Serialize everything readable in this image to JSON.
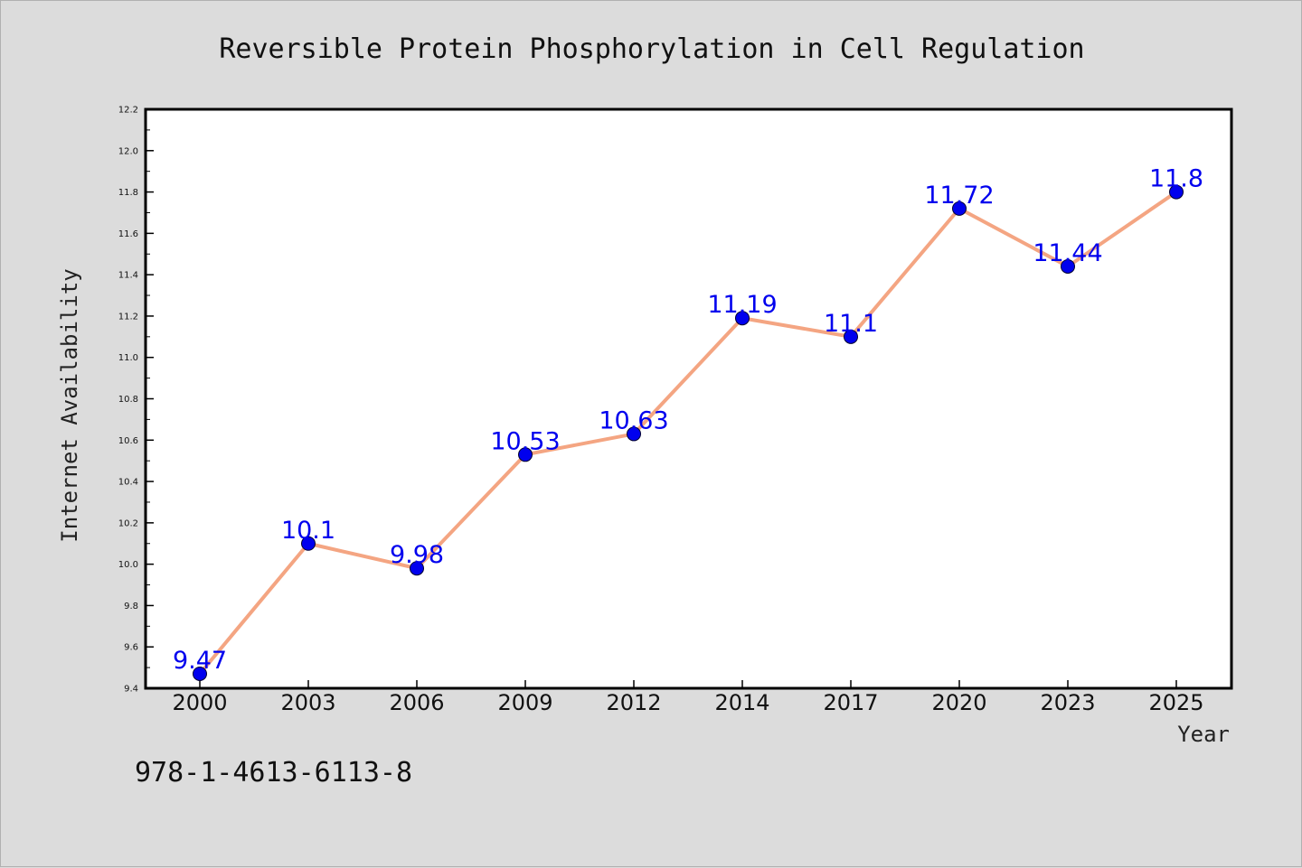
{
  "chart_data": {
    "type": "line",
    "title": "Reversible Protein Phosphorylation in Cell Regulation",
    "xlabel": "Year",
    "ylabel": "Internet Availability",
    "categories": [
      "2000",
      "2003",
      "2006",
      "2009",
      "2012",
      "2014",
      "2017",
      "2020",
      "2023",
      "2025"
    ],
    "series": [
      {
        "values": [
          9.47,
          10.1,
          9.98,
          10.53,
          10.63,
          11.19,
          11.1,
          11.72,
          11.44,
          11.8
        ],
        "labels": [
          "9.47",
          "10.1",
          "9.98",
          "10.53",
          "10.63",
          "11.19",
          "11.1",
          "11.72",
          "11.44",
          "11.8"
        ]
      }
    ],
    "ylim": [
      9.4,
      12.2
    ],
    "yticks": [
      "9.4",
      "9.6",
      "9.8",
      "10.0",
      "10.2",
      "10.4",
      "10.6",
      "10.8",
      "11.0",
      "11.2",
      "11.4",
      "11.6",
      "11.8",
      "12.0",
      "12.2"
    ],
    "grid": false,
    "colors": {
      "line": "#f4a582",
      "marker": "#0000ee",
      "data_label": "#0000ee",
      "plot_background": "#ffffff",
      "figure_background": "#dcdcdc"
    }
  },
  "annotation": {
    "isbn": "978-1-4613-6113-8"
  }
}
